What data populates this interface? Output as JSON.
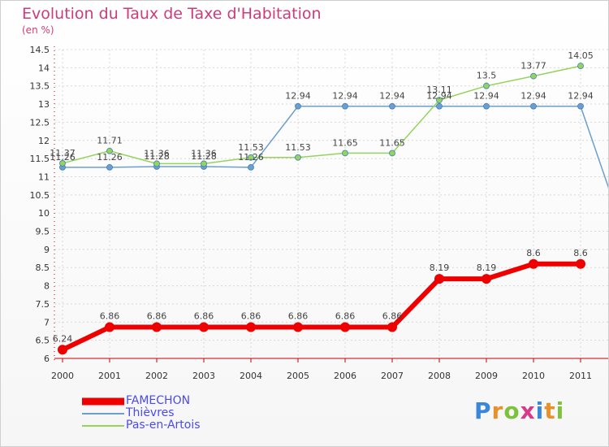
{
  "header": {
    "title": "Evolution du Taux de Taxe d'Habitation",
    "unit": "(en %)"
  },
  "logo": {
    "letters": [
      "P",
      "r",
      "o",
      "x",
      "i",
      "t",
      "i"
    ],
    "colors": [
      "#3a86d8",
      "#e8902a",
      "#7cc23c",
      "#d83a8a",
      "#3a86d8",
      "#e8902a",
      "#7cc23c"
    ]
  },
  "chart_data": {
    "type": "line",
    "x": [
      "2000",
      "2001",
      "2002",
      "2003",
      "2004",
      "2005",
      "2006",
      "2007",
      "2008",
      "2009",
      "2010",
      "2011"
    ],
    "y_ticks": [
      "6",
      "6.5",
      "7",
      "7.5",
      "8",
      "8.5",
      "9",
      "9.5",
      "10",
      "10.5",
      "11",
      "11.5",
      "12",
      "12.5",
      "13",
      "13.5",
      "14",
      "14.5"
    ],
    "ylim": [
      6,
      14.5
    ],
    "grid": true,
    "legend_position": "bottom-left",
    "series": [
      {
        "name": "FAMECHON",
        "color": "#ee0000",
        "values": [
          6.24,
          6.86,
          6.86,
          6.86,
          6.86,
          6.86,
          6.86,
          6.86,
          8.19,
          8.19,
          8.6,
          8.6
        ],
        "labels": [
          "6.24",
          "6.86",
          "6.86",
          "6.86",
          "6.86",
          "6.86",
          "6.86",
          "6.86",
          "8.19",
          "8.19",
          "8.6",
          "8.6"
        ]
      },
      {
        "name": "Thièvres",
        "color": "#6c9fcd",
        "values": [
          11.26,
          11.26,
          11.28,
          11.28,
          11.26,
          12.94,
          12.94,
          12.94,
          12.94,
          12.94,
          12.94,
          12.94
        ],
        "labels": [
          "11.26",
          "11.26",
          "11.28",
          "11.28",
          "11.26",
          "12.94",
          "12.94",
          "12.94",
          "12.94",
          "12.94",
          "12.94",
          "12.94"
        ]
      },
      {
        "name": "Pas-en-Artois",
        "color": "#94d45c",
        "values": [
          11.37,
          11.71,
          11.36,
          11.36,
          11.53,
          11.53,
          11.65,
          11.65,
          13.11,
          13.5,
          13.77,
          14.05
        ],
        "labels": [
          "11.37",
          "11.71",
          "11.36",
          "11.36",
          "11.53",
          "11.53",
          "11.65",
          "11.65",
          "13.11",
          "13.5",
          "13.77",
          "14.05"
        ]
      }
    ]
  }
}
